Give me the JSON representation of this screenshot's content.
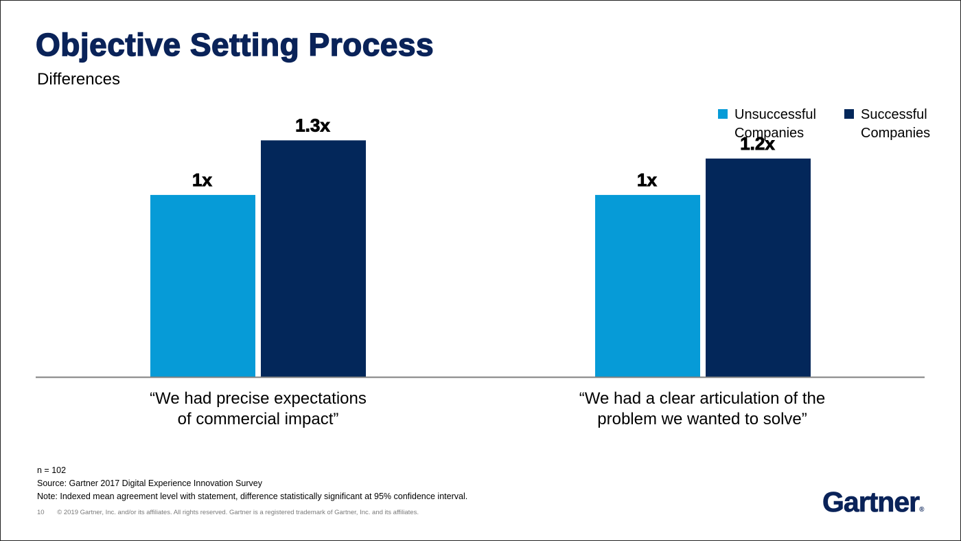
{
  "slide": {
    "title": "Objective Setting Process",
    "subtitle": "Differences",
    "notes": {
      "n": "n = 102",
      "source": "Source: Gartner 2017 Digital Experience Innovation Survey",
      "note": "Note: Indexed mean agreement level with statement, difference statistically significant at 95% confidence interval."
    },
    "footer": {
      "page": "10",
      "copyright": "© 2019 Gartner, Inc. and/or its affiliates. All rights reserved. Gartner is a registered trademark of Gartner, Inc. and its affiliates."
    },
    "logo": {
      "text": "Gartner",
      "mark": "®"
    }
  },
  "colors": {
    "title": "#0a2359",
    "unsuccessful": "#069bd7",
    "successful": "#03275a",
    "axis": "#7f7f7f"
  },
  "chart_data": {
    "type": "bar",
    "categories": [
      "“We had precise expectations\nof commercial impact”",
      "“We had a clear articulation of the\nproblem we wanted to solve”"
    ],
    "series": [
      {
        "name": "Unsuccessful\nCompanies",
        "values": [
          1.0,
          1.0
        ],
        "labels": [
          "1x",
          "1x"
        ],
        "color": "#069bd7"
      },
      {
        "name": "Successful\nCompanies",
        "values": [
          1.3,
          1.2
        ],
        "labels": [
          "1.3x",
          "1.2x"
        ],
        "color": "#03275a"
      }
    ],
    "ylim": [
      0,
      1.66
    ],
    "grid": false,
    "legend": "top-right"
  }
}
